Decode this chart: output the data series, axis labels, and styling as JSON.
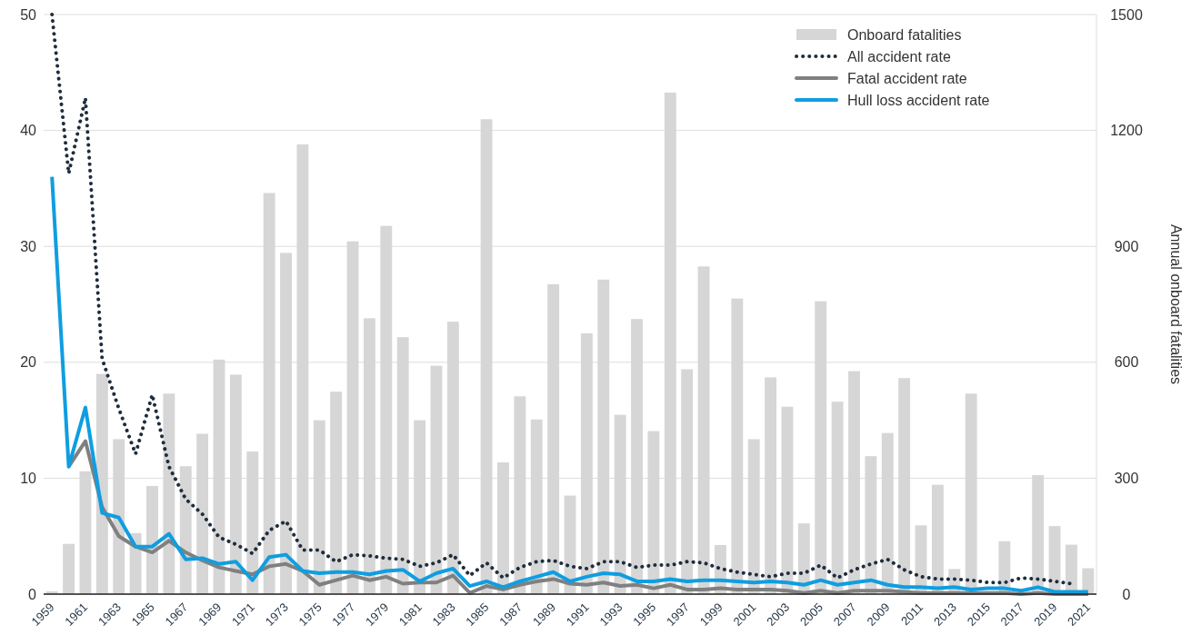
{
  "chart_data": {
    "type": "line",
    "y2label": "Annual onboard fatalities",
    "categories": [
      "1959",
      null,
      "1961",
      null,
      "1963",
      null,
      "1965",
      null,
      "1967",
      null,
      "1969",
      null,
      "1971",
      null,
      "1973",
      null,
      "1975",
      null,
      "1977",
      null,
      "1979",
      null,
      "1981",
      null,
      "1983",
      null,
      "1985",
      null,
      "1987",
      null,
      "1989",
      null,
      "1991",
      null,
      "1993",
      null,
      "1995",
      null,
      "1997",
      null,
      "1999",
      null,
      "2001",
      null,
      "2003",
      null,
      "2005",
      null,
      "2007",
      null,
      "2009",
      null,
      "2011",
      null,
      "2013",
      null,
      "2015",
      null,
      "2017",
      null,
      "2019",
      null,
      "2021"
    ],
    "series": [
      {
        "name": "Onboard fatalities",
        "type": "bar",
        "axis": "y2",
        "color": "#d6d6d6",
        "values": [
          7,
          130,
          318,
          570,
          401,
          158,
          280,
          519,
          331,
          415,
          607,
          568,
          369,
          1038,
          883,
          1164,
          450,
          524,
          913,
          714,
          953,
          665,
          450,
          591,
          705,
          null,
          1229,
          341,
          512,
          452,
          802,
          255,
          675,
          814,
          464,
          712,
          422,
          1298,
          582,
          848,
          127,
          765,
          401,
          561,
          485,
          183,
          758,
          498,
          577,
          357,
          417,
          559,
          178,
          283,
          65,
          519,
          0,
          137,
          0,
          308,
          176,
          128,
          67
        ]
      },
      {
        "name": "All accident rate",
        "line_style": "dotted",
        "color": "#1f2d3d",
        "values": [
          50,
          36.3,
          42.8,
          20.3,
          16.0,
          12.1,
          17.2,
          11.0,
          8.2,
          6.9,
          4.9,
          4.3,
          3.5,
          5.5,
          6.3,
          3.8,
          3.8,
          2.8,
          3.4,
          3.3,
          3.1,
          3.0,
          2.4,
          2.7,
          3.4,
          1.6,
          2.7,
          1.4,
          2.3,
          2.8,
          2.9,
          2.4,
          2.2,
          2.8,
          2.8,
          2.3,
          2.5,
          2.5,
          2.8,
          2.7,
          2.2,
          1.9,
          1.7,
          1.5,
          1.8,
          1.8,
          2.5,
          1.4,
          2.1,
          2.6,
          3.0,
          2.1,
          1.5,
          1.3,
          1.3,
          1.2,
          1.0,
          1.0,
          1.4,
          1.3,
          1.1,
          0.9,
          null
        ]
      },
      {
        "name": "Fatal accident rate",
        "line_style": "solid",
        "color": "#808080",
        "values": [
          null,
          11.0,
          13.2,
          7.5,
          5.0,
          4.1,
          3.6,
          4.6,
          3.6,
          2.9,
          2.3,
          2.0,
          1.7,
          2.4,
          2.6,
          2.0,
          0.8,
          1.2,
          1.6,
          1.2,
          1.5,
          0.9,
          1.0,
          1.0,
          1.6,
          0.1,
          0.7,
          0.4,
          0.8,
          1.1,
          1.3,
          0.9,
          0.8,
          1.0,
          0.7,
          0.8,
          0.5,
          0.8,
          0.4,
          0.4,
          0.5,
          0.4,
          0.4,
          0.4,
          0.3,
          0.1,
          0.3,
          0.1,
          0.3,
          0.3,
          0.3,
          0.2,
          0.1,
          0.1,
          0.1,
          0.1,
          0.1,
          0.1,
          0.0,
          0.1,
          0.0,
          0.0,
          0.0
        ]
      },
      {
        "name": "Hull loss accident rate",
        "line_style": "solid",
        "color": "#0f9ee0",
        "values": [
          36.0,
          11.0,
          16.1,
          7.0,
          6.6,
          4.1,
          4.1,
          5.2,
          3.0,
          3.1,
          2.6,
          2.8,
          1.2,
          3.2,
          3.4,
          2.0,
          1.8,
          1.9,
          1.9,
          1.7,
          2.0,
          2.1,
          1.1,
          1.8,
          2.2,
          0.7,
          1.1,
          0.6,
          1.1,
          1.5,
          1.9,
          1.1,
          1.5,
          1.8,
          1.7,
          1.1,
          1.1,
          1.3,
          1.1,
          1.2,
          1.2,
          1.1,
          1.0,
          1.1,
          1.0,
          0.8,
          1.2,
          0.8,
          1.0,
          1.2,
          0.8,
          0.6,
          0.6,
          0.5,
          0.6,
          0.4,
          0.5,
          0.5,
          0.3,
          0.6,
          0.2,
          0.2,
          0.2
        ]
      }
    ],
    "ylim": [
      0,
      50
    ],
    "yticks": [
      0,
      10,
      20,
      30,
      40,
      50
    ],
    "y2lim": [
      0,
      1500
    ],
    "y2ticks": [
      0,
      300,
      600,
      900,
      1200,
      1500
    ],
    "grid": "y",
    "legend": "top right",
    "marker": "none"
  }
}
